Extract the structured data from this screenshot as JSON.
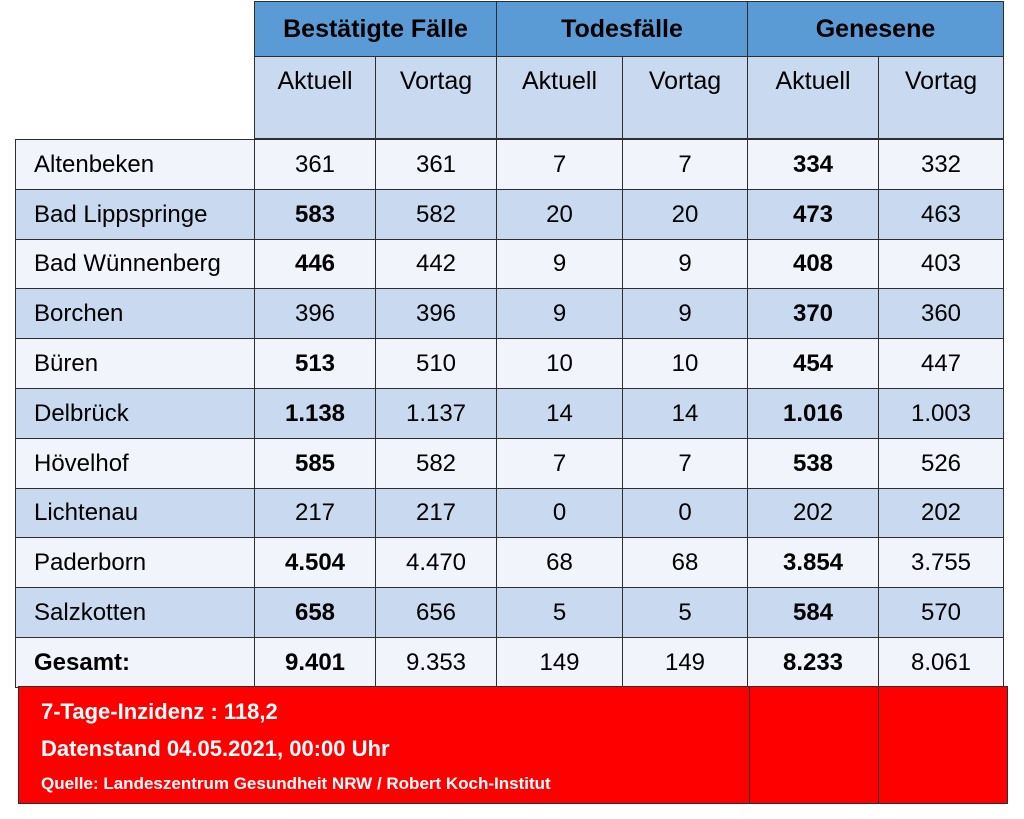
{
  "groups": [
    "Bestätigte Fälle",
    "Todesfälle",
    "Genesene"
  ],
  "subheaders": [
    "Aktuell",
    "Vortag",
    "Aktuell",
    "Vortag",
    "Aktuell",
    "Vortag"
  ],
  "rows": [
    {
      "name": "Altenbeken",
      "values": [
        "361",
        "361",
        "7",
        "7",
        "334",
        "332"
      ],
      "bold": [
        false,
        false,
        false,
        false,
        true,
        false
      ]
    },
    {
      "name": "Bad Lippspringe",
      "values": [
        "583",
        "582",
        "20",
        "20",
        "473",
        "463"
      ],
      "bold": [
        true,
        false,
        false,
        false,
        true,
        false
      ]
    },
    {
      "name": "Bad Wünnenberg",
      "values": [
        "446",
        "442",
        "9",
        "9",
        "408",
        "403"
      ],
      "bold": [
        true,
        false,
        false,
        false,
        true,
        false
      ]
    },
    {
      "name": "Borchen",
      "values": [
        "396",
        "396",
        "9",
        "9",
        "370",
        "360"
      ],
      "bold": [
        false,
        false,
        false,
        false,
        true,
        false
      ]
    },
    {
      "name": "Büren",
      "values": [
        "513",
        "510",
        "10",
        "10",
        "454",
        "447"
      ],
      "bold": [
        true,
        false,
        false,
        false,
        true,
        false
      ]
    },
    {
      "name": "Delbrück",
      "values": [
        "1.138",
        "1.137",
        "14",
        "14",
        "1.016",
        "1.003"
      ],
      "bold": [
        true,
        false,
        false,
        false,
        true,
        false
      ]
    },
    {
      "name": "Hövelhof",
      "values": [
        "585",
        "582",
        "7",
        "7",
        "538",
        "526"
      ],
      "bold": [
        true,
        false,
        false,
        false,
        true,
        false
      ]
    },
    {
      "name": "Lichtenau",
      "values": [
        "217",
        "217",
        "0",
        "0",
        "202",
        "202"
      ],
      "bold": [
        false,
        false,
        false,
        false,
        false,
        false
      ]
    },
    {
      "name": "Paderborn",
      "values": [
        "4.504",
        "4.470",
        "68",
        "68",
        "3.854",
        "3.755"
      ],
      "bold": [
        true,
        false,
        false,
        false,
        true,
        false
      ]
    },
    {
      "name": "Salzkotten",
      "values": [
        "658",
        "656",
        "5",
        "5",
        "584",
        "570"
      ],
      "bold": [
        true,
        false,
        false,
        false,
        true,
        false
      ]
    },
    {
      "name": "Gesamt:",
      "values": [
        "9.401",
        "9.353",
        "149",
        "149",
        "8.233",
        "8.061"
      ],
      "bold": [
        true,
        false,
        false,
        false,
        true,
        false
      ],
      "name_bold": true
    }
  ],
  "footer": {
    "incidence": "7-Tage-Inzidenz : 118,2",
    "date": "Datenstand 04.05.2021, 00:00 Uhr",
    "source": "Quelle: Landeszentrum Gesundheit NRW / Robert Koch-Institut"
  },
  "colors": {
    "header_blue": "#5b9bd5",
    "row_light_blue": "#c9daf0",
    "row_pale": "#f1f4fa",
    "footer_red": "#ff0000"
  }
}
